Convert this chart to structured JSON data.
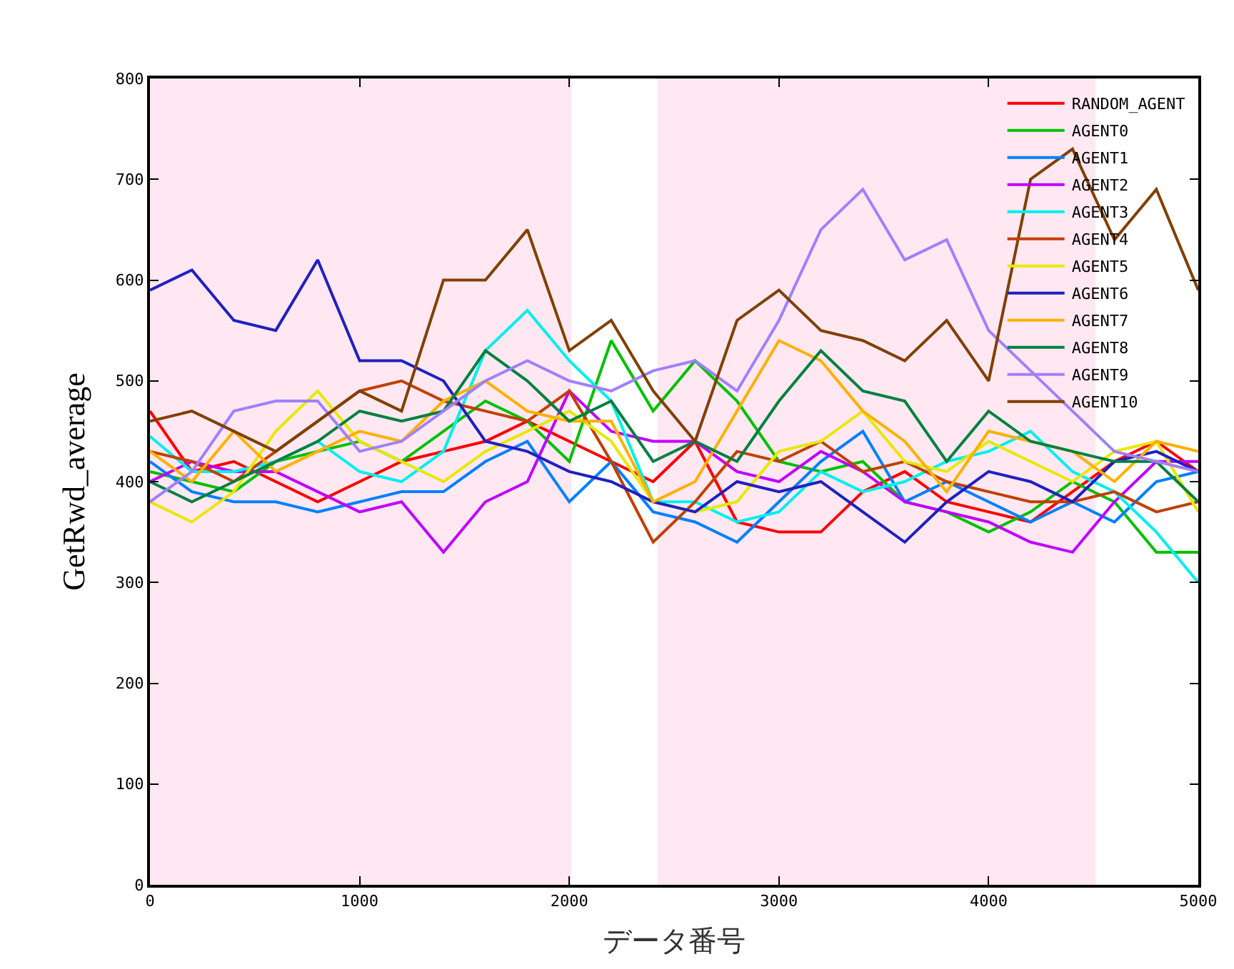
{
  "chart_data": {
    "type": "line",
    "xlabel": "データ番号",
    "ylabel": "GetRwd_average",
    "x": [
      0,
      200,
      400,
      600,
      800,
      1000,
      1200,
      1400,
      1600,
      1800,
      2000,
      2200,
      2400,
      2600,
      2800,
      3000,
      3200,
      3400,
      3600,
      3800,
      4000,
      4200,
      4400,
      4600,
      4800,
      5000
    ],
    "xlim": [
      0,
      5000
    ],
    "xticks": [
      0,
      1000,
      2000,
      3000,
      4000,
      5000
    ],
    "ylim": [
      0,
      800
    ],
    "yticks": [
      0,
      100,
      200,
      300,
      400,
      500,
      600,
      700,
      800
    ],
    "grid": false,
    "legend": "top right",
    "line_style": "solid",
    "marker": "none",
    "bands": [
      {
        "axis": "x",
        "from": 0,
        "to": 2000,
        "color": "#ffc0d8"
      },
      {
        "axis": "x",
        "from": 2430,
        "to": 4500,
        "color": "#ffc0d8"
      }
    ],
    "series": [
      {
        "name": "RANDOM_AGENT",
        "color": "#ff0000",
        "values": [
          470,
          410,
          420,
          400,
          380,
          400,
          420,
          430,
          440,
          460,
          440,
          420,
          400,
          440,
          360,
          350,
          350,
          390,
          410,
          380,
          370,
          360,
          390,
          420,
          440,
          410
        ]
      },
      {
        "name": "AGENT0",
        "color": "#00c000",
        "values": [
          410,
          400,
          390,
          420,
          430,
          440,
          420,
          450,
          480,
          460,
          420,
          540,
          470,
          520,
          480,
          420,
          410,
          420,
          380,
          370,
          350,
          370,
          400,
          380,
          330,
          330
        ]
      },
      {
        "name": "AGENT1",
        "color": "#0080ff",
        "values": [
          420,
          390,
          380,
          380,
          370,
          380,
          390,
          390,
          420,
          440,
          380,
          420,
          370,
          360,
          340,
          380,
          420,
          450,
          380,
          400,
          380,
          360,
          380,
          360,
          400,
          410
        ]
      },
      {
        "name": "AGENT2",
        "color": "#c000ff",
        "values": [
          400,
          420,
          410,
          410,
          390,
          370,
          380,
          330,
          380,
          400,
          490,
          450,
          440,
          440,
          410,
          400,
          430,
          410,
          380,
          370,
          360,
          340,
          330,
          380,
          420,
          420
        ]
      },
      {
        "name": "AGENT3",
        "color": "#00eeee",
        "values": [
          445,
          410,
          410,
          420,
          440,
          410,
          400,
          430,
          530,
          570,
          520,
          480,
          380,
          380,
          360,
          370,
          410,
          390,
          400,
          420,
          430,
          450,
          410,
          390,
          350,
          300
        ]
      },
      {
        "name": "AGENT4",
        "color": "#c04000",
        "values": [
          430,
          420,
          400,
          430,
          460,
          490,
          500,
          480,
          470,
          460,
          490,
          420,
          340,
          380,
          430,
          420,
          440,
          410,
          420,
          400,
          390,
          380,
          380,
          390,
          370,
          380
        ]
      },
      {
        "name": "AGENT5",
        "color": "#e8e800",
        "values": [
          380,
          360,
          390,
          450,
          490,
          440,
          420,
          400,
          430,
          450,
          470,
          440,
          380,
          370,
          380,
          430,
          440,
          470,
          420,
          410,
          440,
          420,
          400,
          430,
          440,
          370
        ]
      },
      {
        "name": "AGENT6",
        "color": "#2020c0",
        "values": [
          590,
          610,
          560,
          550,
          620,
          520,
          520,
          500,
          440,
          430,
          410,
          400,
          380,
          370,
          400,
          390,
          400,
          370,
          340,
          380,
          410,
          400,
          380,
          420,
          430,
          410
        ]
      },
      {
        "name": "AGENT7",
        "color": "#ffb000",
        "values": [
          430,
          400,
          450,
          410,
          430,
          450,
          440,
          480,
          500,
          470,
          460,
          460,
          380,
          400,
          470,
          540,
          520,
          470,
          440,
          390,
          450,
          440,
          430,
          400,
          440,
          430
        ]
      },
      {
        "name": "AGENT8",
        "color": "#008040",
        "values": [
          400,
          380,
          400,
          420,
          440,
          470,
          460,
          470,
          530,
          500,
          460,
          480,
          420,
          440,
          420,
          480,
          530,
          490,
          480,
          420,
          470,
          440,
          430,
          420,
          420,
          380
        ]
      },
      {
        "name": "AGENT9",
        "color": "#a080ff",
        "values": [
          380,
          410,
          470,
          480,
          480,
          430,
          440,
          470,
          500,
          520,
          500,
          490,
          510,
          520,
          490,
          560,
          650,
          690,
          620,
          640,
          550,
          510,
          470,
          430,
          420,
          410
        ]
      },
      {
        "name": "AGENT10",
        "color": "#804000",
        "values": [
          460,
          470,
          450,
          430,
          460,
          490,
          470,
          600,
          600,
          650,
          530,
          560,
          490,
          440,
          560,
          590,
          550,
          540,
          520,
          560,
          500,
          700,
          730,
          640,
          690,
          590
        ]
      }
    ]
  }
}
